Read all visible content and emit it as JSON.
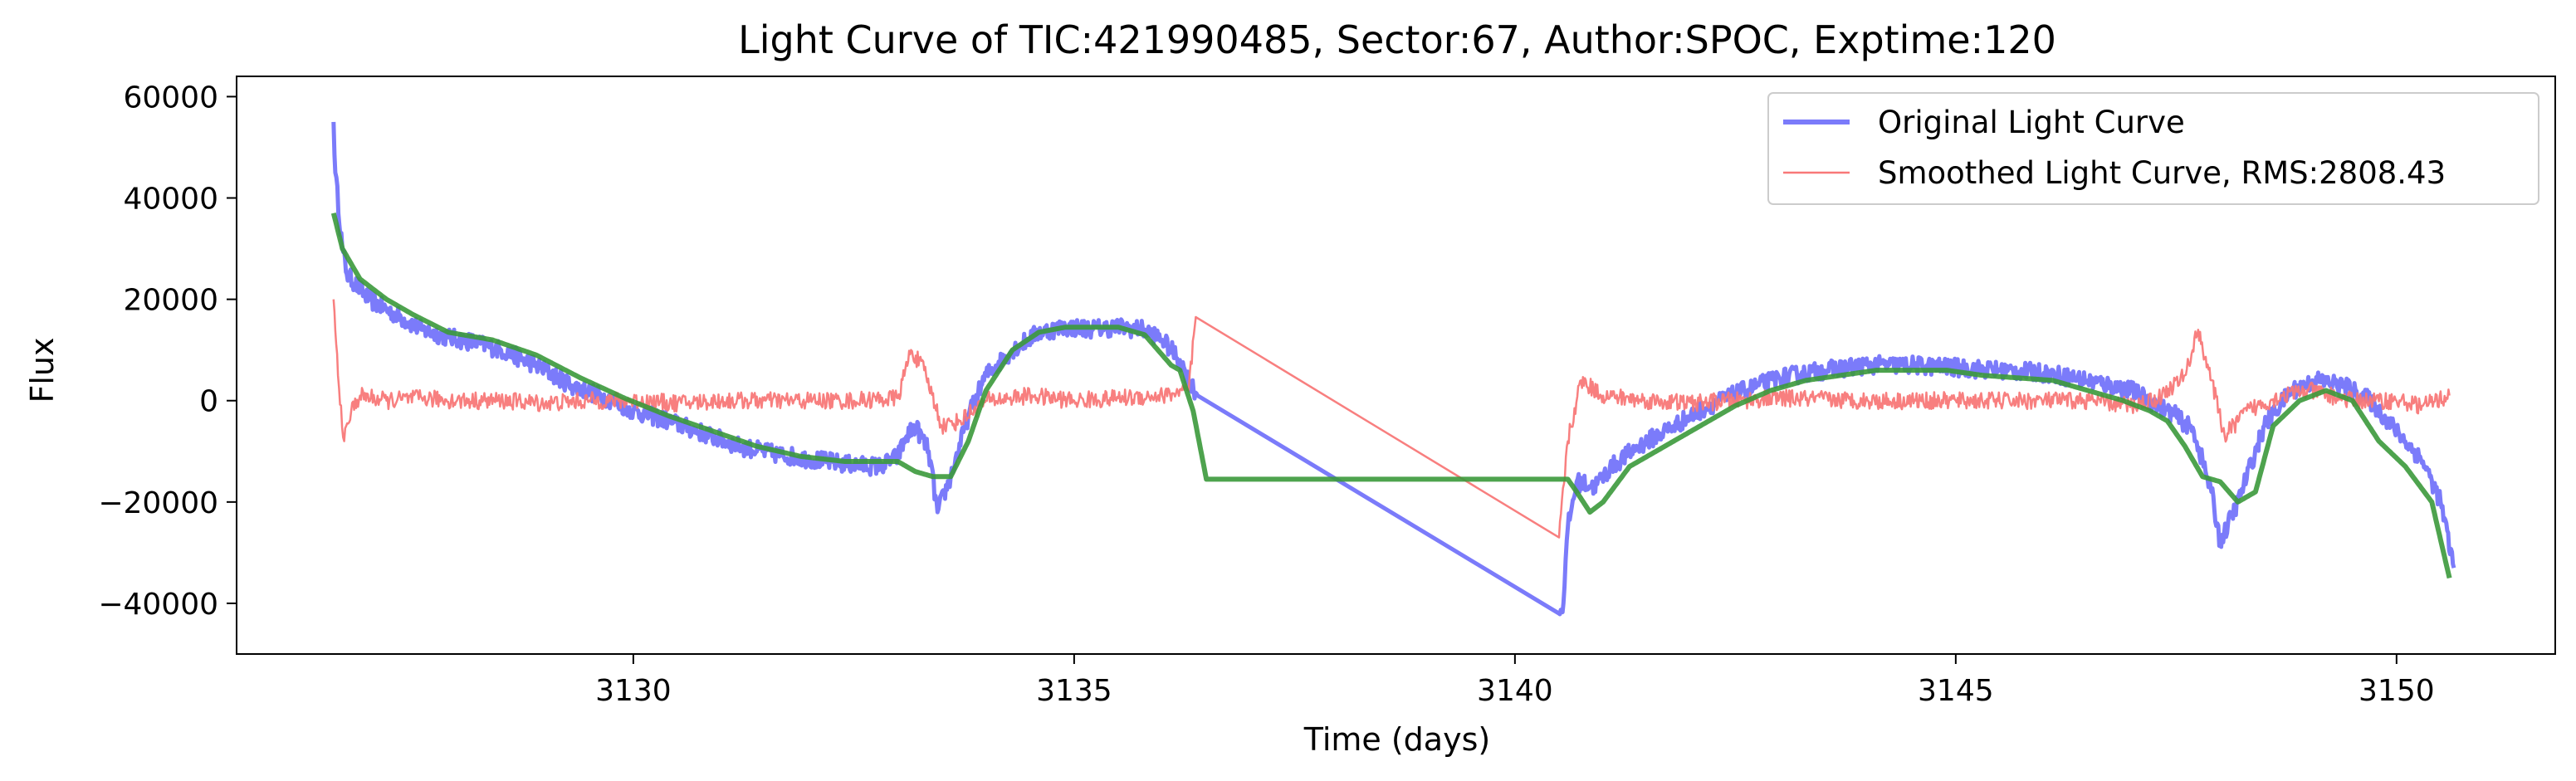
{
  "chart_data": {
    "type": "line",
    "title": "Light Curve of TIC:421990485, Sector:67, Author:SPOC, Exptime:120",
    "xlabel": "Time (days)",
    "ylabel": "Flux",
    "xlim": [
      3125.5,
      3151.8
    ],
    "ylim": [
      -50000,
      64000
    ],
    "xticks": [
      3130,
      3135,
      3140,
      3145,
      3150
    ],
    "yticks": [
      -40000,
      -20000,
      0,
      20000,
      40000,
      60000
    ],
    "grid": false,
    "legend_position": "upper-right",
    "series": [
      {
        "name": "Original Light Curve",
        "color": "#7b7bfa",
        "noise": 1800,
        "x": [
          3126.6,
          3126.62,
          3126.7,
          3126.75,
          3126.9,
          3127.0,
          3127.3,
          3127.6,
          3127.9,
          3128.2,
          3128.5,
          3128.9,
          3129.3,
          3129.7,
          3130.0,
          3130.4,
          3130.8,
          3131.2,
          3131.6,
          3132.0,
          3132.4,
          3132.8,
          3133.0,
          3133.1,
          3133.2,
          3133.35,
          3133.45,
          3133.6,
          3133.8,
          3134.0,
          3134.3,
          3134.6,
          3134.9,
          3135.2,
          3135.5,
          3135.8,
          3136.0,
          3136.2,
          3136.3,
          3136.4,
          3140.5,
          3140.55,
          3140.6,
          3140.7,
          3140.9,
          3141.1,
          3141.4,
          3141.8,
          3142.2,
          3142.6,
          3143.0,
          3143.5,
          3144.0,
          3144.5,
          3145.0,
          3145.5,
          3146.0,
          3146.5,
          3147.0,
          3147.3,
          3147.5,
          3147.7,
          3147.9,
          3148.0,
          3148.2,
          3148.5,
          3148.8,
          3149.1,
          3149.4,
          3149.7,
          3150.0,
          3150.3,
          3150.5,
          3150.65
        ],
        "y": [
          55000,
          45000,
          30000,
          25000,
          22000,
          20000,
          17000,
          14000,
          12500,
          11500,
          10000,
          7000,
          3000,
          500,
          -2000,
          -4000,
          -6500,
          -9000,
          -10500,
          -11500,
          -12500,
          -13000,
          -11000,
          -7000,
          -5000,
          -10000,
          -22000,
          -15000,
          -3000,
          5000,
          10000,
          13500,
          14500,
          14200,
          14500,
          14000,
          12000,
          8000,
          4000,
          1000,
          -42000,
          -40000,
          -25000,
          -16000,
          -17000,
          -13000,
          -9000,
          -5000,
          -1000,
          2000,
          4500,
          6000,
          7000,
          7000,
          6500,
          6000,
          5500,
          4000,
          2000,
          -1000,
          -3000,
          -6000,
          -18000,
          -28000,
          -20000,
          -5000,
          2000,
          4000,
          3000,
          0,
          -6000,
          -12000,
          -20000,
          -33000
        ]
      },
      {
        "name": "Smoothed Light Curve, RMS:2808.43",
        "color": "#f87878",
        "noise": 1700,
        "x": [
          3126.6,
          3126.65,
          3126.72,
          3126.8,
          3126.9,
          3127.2,
          3127.6,
          3128.0,
          3128.5,
          3129.0,
          3129.5,
          3130.0,
          3130.5,
          3131.0,
          3131.5,
          3132.0,
          3132.5,
          3133.0,
          3133.15,
          3133.3,
          3133.5,
          3133.7,
          3134.0,
          3134.5,
          3135.0,
          3135.5,
          3136.0,
          3136.3,
          3136.38,
          3140.5,
          3140.6,
          3140.75,
          3141.0,
          3141.5,
          3142.0,
          3142.5,
          3143.0,
          3144.0,
          3145.0,
          3146.0,
          3146.5,
          3147.0,
          3147.3,
          3147.6,
          3147.75,
          3147.9,
          3148.05,
          3148.3,
          3148.7,
          3149.0,
          3149.5,
          3150.0,
          3150.3,
          3150.6
        ],
        "y": [
          20000,
          5000,
          -8000,
          -2000,
          1000,
          0,
          500,
          0,
          0,
          -500,
          0,
          0,
          -500,
          0,
          0,
          0,
          0,
          500,
          10000,
          6000,
          -5000,
          -4000,
          0,
          1000,
          0,
          500,
          1000,
          2000,
          16500,
          -27000,
          -8000,
          4000,
          1000,
          0,
          -500,
          0,
          500,
          0,
          0,
          0,
          0,
          -1000,
          500,
          5000,
          14000,
          4000,
          -7000,
          -2000,
          1000,
          2000,
          0,
          0,
          -1000,
          1000
        ]
      },
      {
        "name": "",
        "color": "#3b993b",
        "noise": 0,
        "x": [
          3126.6,
          3126.7,
          3126.9,
          3127.2,
          3127.5,
          3127.9,
          3128.4,
          3128.9,
          3129.4,
          3129.9,
          3130.4,
          3130.9,
          3131.4,
          3131.9,
          3132.4,
          3132.8,
          3133.0,
          3133.2,
          3133.4,
          3133.6,
          3133.8,
          3134.0,
          3134.3,
          3134.6,
          3134.9,
          3135.2,
          3135.5,
          3135.8,
          3136.0,
          3136.1,
          3136.2,
          3136.35,
          3136.5,
          3140.5,
          3140.6,
          3140.7,
          3140.85,
          3141.0,
          3141.3,
          3141.7,
          3142.1,
          3142.5,
          3142.9,
          3143.3,
          3143.7,
          3144.1,
          3144.5,
          3144.9,
          3145.3,
          3145.7,
          3146.1,
          3146.5,
          3146.9,
          3147.2,
          3147.4,
          3147.6,
          3147.8,
          3148.0,
          3148.2,
          3148.4,
          3148.6,
          3148.9,
          3149.2,
          3149.5,
          3149.8,
          3150.1,
          3150.4,
          3150.6
        ],
        "y": [
          37000,
          30000,
          24000,
          20000,
          17000,
          13500,
          12000,
          9000,
          4500,
          500,
          -3000,
          -6000,
          -9000,
          -11000,
          -12000,
          -12000,
          -12000,
          -14000,
          -15000,
          -15000,
          -8000,
          2000,
          10000,
          13500,
          14500,
          14500,
          14500,
          13000,
          9000,
          7000,
          6000,
          -2000,
          -15500,
          -15500,
          -15500,
          -18000,
          -22000,
          -20000,
          -13000,
          -9000,
          -5000,
          -1000,
          2000,
          4000,
          5000,
          6000,
          6000,
          6000,
          5000,
          4500,
          4000,
          2000,
          0,
          -2000,
          -4000,
          -9000,
          -15000,
          -16000,
          -20000,
          -18000,
          -5000,
          0,
          2000,
          0,
          -8000,
          -13000,
          -20000,
          -35000
        ]
      }
    ]
  }
}
